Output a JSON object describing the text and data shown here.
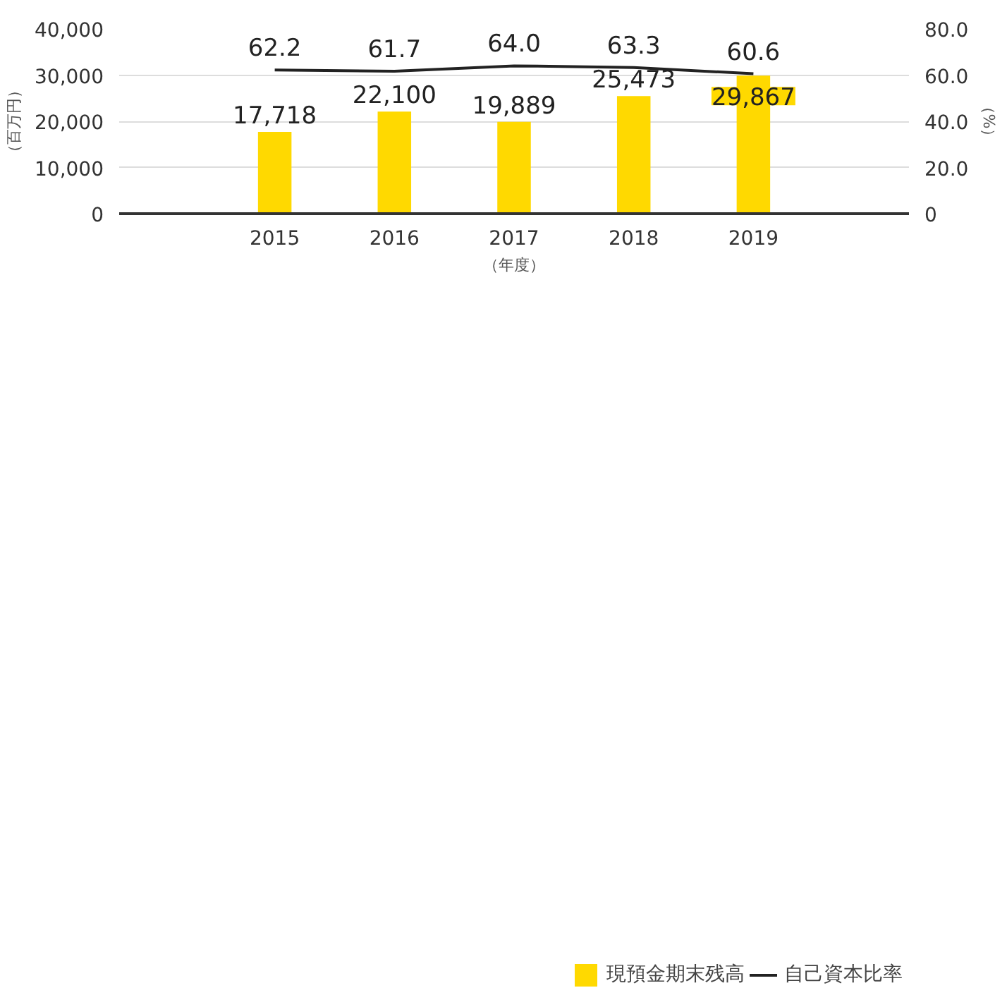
{
  "chart_data": {
    "type": "bar",
    "categories": [
      "2015",
      "2016",
      "2017",
      "2018",
      "2019"
    ],
    "series": [
      {
        "name": "現預金期末残高",
        "color": "#ffd900",
        "values": [
          17718,
          22100,
          19889,
          25473,
          29867
        ],
        "value_labels": [
          "17,718",
          "22,100",
          "19,889",
          "25,473",
          "29,867"
        ]
      },
      {
        "name": "自己資本比率",
        "type": "line",
        "axis": "y2",
        "color": "#222222",
        "values": [
          62.2,
          61.7,
          64.0,
          63.3,
          60.6
        ],
        "value_labels": [
          "62.2",
          "61.7",
          "64.0",
          "63.3",
          "60.6"
        ]
      }
    ],
    "ylabel": "（百万円）",
    "y2label": "（%）",
    "xlabel": "（年度）",
    "ylim": [
      0,
      40000
    ],
    "yticks": [
      {
        "value": 0,
        "label": "0"
      },
      {
        "value": 10000,
        "label": "10,000"
      },
      {
        "value": 20000,
        "label": "20,000"
      },
      {
        "value": 30000,
        "label": "30,000"
      },
      {
        "value": 40000,
        "label": "40,000"
      }
    ],
    "y2lim": [
      0,
      80
    ],
    "y2ticks": [
      {
        "value": 0,
        "label": "0"
      },
      {
        "value": 20,
        "label": "20.0"
      },
      {
        "value": 40,
        "label": "40.0"
      },
      {
        "value": 60,
        "label": "60.0"
      },
      {
        "value": 80,
        "label": "80.0"
      }
    ],
    "grid": "y",
    "legend": "bottom right",
    "marker": "none",
    "line_style": "solid"
  }
}
